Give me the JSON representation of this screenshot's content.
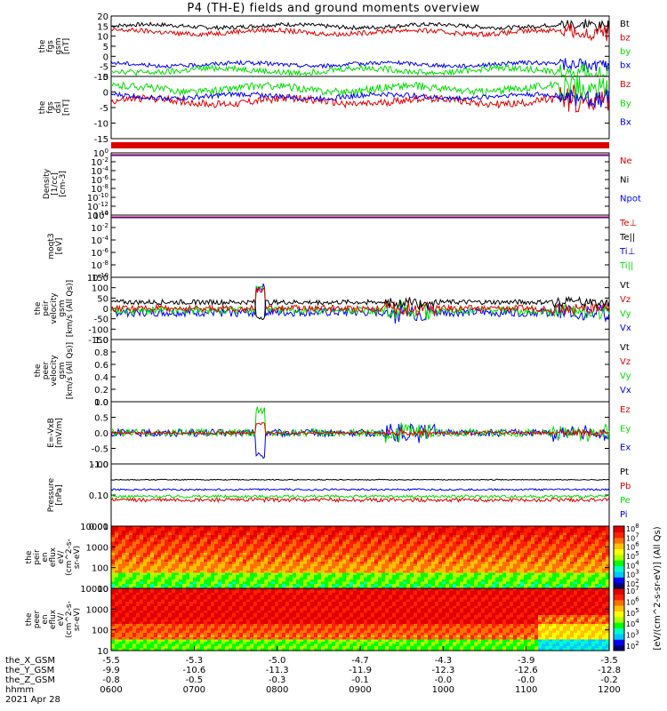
{
  "title": "P4 (TH-E) fields and ground moments overview",
  "colors": {
    "black": "#000000",
    "red": "#dd0000",
    "green": "#00dd00",
    "blue": "#0000ee",
    "cbar": [
      "#000070",
      "#0000ff",
      "#00c8ff",
      "#00ffc8",
      "#00ff00",
      "#aaff00",
      "#ffff00",
      "#ffc000",
      "#ff7000",
      "#ff2000",
      "#e00000"
    ]
  },
  "chart_data": [
    {
      "type": "line",
      "id": "fgs_gsm",
      "ylabel": [
        "the",
        "fgs",
        "gsm",
        "[nT]"
      ],
      "ylim": [
        -10,
        20
      ],
      "yticks": [
        "20",
        "15",
        "10",
        "5",
        "0",
        "-5",
        "-10"
      ],
      "legend": [
        "Bt",
        "bz",
        "by",
        "bx"
      ],
      "series": [
        {
          "name": "Bt",
          "color": "#000000",
          "level": 15,
          "noise": 1.0
        },
        {
          "name": "bz",
          "color": "#dd0000",
          "level": 12,
          "noise": 1.2
        },
        {
          "name": "by",
          "color": "#0000ee",
          "level": -4,
          "noise": 1.0
        },
        {
          "name": "bx",
          "color": "#00dd00",
          "level": -7,
          "noise": 1.5
        }
      ]
    },
    {
      "type": "line",
      "id": "fgs_dsl",
      "ylabel": [
        "the",
        "fgs",
        "dsl",
        "[nT]"
      ],
      "ylim": [
        -18,
        7
      ],
      "yticks": [
        "5",
        "0",
        "-5",
        "-10",
        "-15"
      ],
      "legend": [
        "Bz",
        "By",
        "Bx"
      ],
      "series": [
        {
          "name": "Bz",
          "color": "#dd0000",
          "level": -3,
          "noise": 1.5
        },
        {
          "name": "By",
          "color": "#00dd00",
          "level": 2,
          "noise": 1.5
        },
        {
          "name": "Bx",
          "color": "#0000ee",
          "level": -1,
          "noise": 1.0
        }
      ]
    },
    {
      "type": "line",
      "id": "density",
      "ylabel": [
        "Density",
        "[1/cc]",
        "[cm-3]"
      ],
      "ylim": [
        1e-14,
        1
      ],
      "yticks": [
        "10^0",
        "10^-2",
        "10^-4",
        "10^-6",
        "10^-8",
        "10^-10",
        "10^-12",
        "10^-14"
      ],
      "legend": [
        "Ne",
        "Ni",
        "Npot"
      ]
    },
    {
      "type": "line",
      "id": "temperature",
      "ylabel": [
        "moqt3",
        "[eV]"
      ],
      "ylim": [
        1e-10,
        1
      ],
      "yticks": [
        "10^0",
        "10^-2",
        "10^-4",
        "10^-6",
        "10^-8",
        "10^-10"
      ],
      "legend": [
        "Te⊥",
        "Te||",
        "Ti⊥",
        "Ti||"
      ]
    },
    {
      "type": "line",
      "id": "peir_velocity",
      "ylabel": [
        "the",
        "peir",
        "velocity",
        "gsm",
        "[km/s (All Qs)]"
      ],
      "ylim": [
        -150,
        150
      ],
      "yticks": [
        "150",
        "100",
        "50",
        "0",
        "-50",
        "-100",
        "-150"
      ],
      "legend": [
        "Vt",
        "Vz",
        "Vy",
        "Vx"
      ],
      "series": [
        {
          "name": "Vx",
          "color": "#0000ee",
          "level": -20,
          "noise": 20
        },
        {
          "name": "Vy",
          "color": "#00dd00",
          "level": -10,
          "noise": 18
        },
        {
          "name": "Vz",
          "color": "#dd0000",
          "level": 0,
          "noise": 15
        },
        {
          "name": "Vt",
          "color": "#000000",
          "level": 30,
          "noise": 12
        }
      ]
    },
    {
      "type": "line",
      "id": "peer_velocity",
      "ylabel": [
        "the",
        "peer",
        "velocity",
        "gsm",
        "[km/s (All Qs)]"
      ],
      "ylim": [
        0,
        1
      ],
      "yticks": [
        "1.0",
        "0.8",
        "0.6",
        "0.4",
        "0.2",
        "0.0"
      ],
      "legend": [
        "Vt",
        "Vz",
        "Vy",
        "Vx"
      ]
    },
    {
      "type": "line",
      "id": "e_field",
      "ylabel": [
        "E=-VxB",
        "[mV/m]"
      ],
      "ylim": [
        -1,
        1
      ],
      "yticks": [
        "1.0",
        "0.5",
        "0.0",
        "-0.5",
        "-1.0"
      ],
      "legend": [
        "Ez",
        "Ey",
        "Ex"
      ],
      "series": [
        {
          "name": "Ex",
          "color": "#0000ee",
          "level": 0,
          "noise": 0.12
        },
        {
          "name": "Ey",
          "color": "#00dd00",
          "level": 0,
          "noise": 0.12
        },
        {
          "name": "Ez",
          "color": "#dd0000",
          "level": 0,
          "noise": 0.05
        }
      ]
    },
    {
      "type": "line",
      "id": "pressure",
      "ylabel": [
        "Pressure",
        "[nPa]"
      ],
      "ylim": [
        0.01,
        1.0
      ],
      "scale": "log",
      "yticks": [
        "1.00",
        "0.10",
        "0.01"
      ],
      "legend": [
        "Pt",
        "Pb",
        "Pe",
        "Pi"
      ],
      "series": [
        {
          "name": "Pt",
          "color": "#000000",
          "level": 0.31,
          "noise": 0.01
        },
        {
          "name": "Pi",
          "color": "#0000ee",
          "level": 0.15,
          "noise": 0.01
        },
        {
          "name": "Pe",
          "color": "#00dd00",
          "level": 0.09,
          "noise": 0.01
        },
        {
          "name": "Pb",
          "color": "#dd0000",
          "level": 0.07,
          "noise": 0.01
        }
      ]
    },
    {
      "type": "heatmap",
      "id": "peir_eflux",
      "ylabel": [
        "the",
        "peir",
        "en",
        "eflux",
        "eV/",
        "(cm^2-s-",
        "sr-eV)"
      ],
      "ylim": [
        5,
        25000
      ],
      "yticks": [
        "10000",
        "1000",
        "100",
        "10"
      ],
      "cbar_ticks": [
        "10^8",
        "10^7",
        "10^6",
        "10^5",
        "10^4",
        "10^3",
        "10^2"
      ]
    },
    {
      "type": "heatmap",
      "id": "peer_eflux",
      "ylabel": [
        "the",
        "peer",
        "en",
        "eflux",
        "eV/",
        "(cm^2-s-",
        "sr-eV)"
      ],
      "ylim": [
        5,
        25000
      ],
      "yticks": [
        "10000",
        "1000",
        "100",
        "10"
      ],
      "cbar_ticks": [
        "10^7",
        "10^6",
        "10^5",
        "10^4",
        "10^3",
        "10^2"
      ]
    }
  ],
  "cbar_label": "[eV/(cm^2-s-sr-eV)] (All Qs)",
  "x_axis": {
    "ticks": [
      "0600",
      "0700",
      "0800",
      "0900",
      "1000",
      "1100",
      "1200"
    ],
    "rows": [
      {
        "label": "the_X_GSM",
        "values": [
          "-5.5",
          "-5.3",
          "-5.0",
          "-4.7",
          "-4.3",
          "-3.9",
          "-3.5"
        ]
      },
      {
        "label": "the_Y_GSM",
        "values": [
          "-9.9",
          "-10.6",
          "-11.3",
          "-11.9",
          "-12.3",
          "-12.6",
          "-12.8"
        ]
      },
      {
        "label": "the_Z_GSM",
        "values": [
          "-0.8",
          "-0.5",
          "-0.3",
          "-0.1",
          "-0.0",
          "-0.0",
          "-0.2"
        ]
      },
      {
        "label": "hhmm",
        "values": [
          "0600",
          "0700",
          "0800",
          "0900",
          "1000",
          "1100",
          "1200"
        ]
      }
    ],
    "date": "2021 Apr 28"
  }
}
